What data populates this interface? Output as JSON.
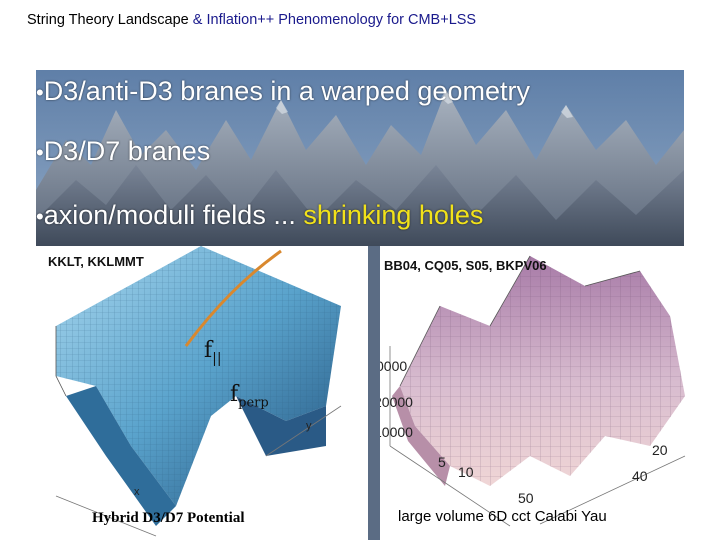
{
  "title": {
    "part1": "String Theory Landscape ",
    "part2": "& Inflation++ Phenomenology for CMB+LSS"
  },
  "bullets": [
    {
      "text": "D3/anti-D3 branes in a warped geometry"
    },
    {
      "text": "D3/D7 branes"
    },
    {
      "text": "axion/moduli fields ... ",
      "highlight": "shrinking holes"
    }
  ],
  "left_panel": {
    "label": "KKLT, KKLMMT",
    "f_parallel": "f",
    "f_parallel_sub": "||",
    "f_perp": "f",
    "f_perp_sub": "perp",
    "axis_x": "x",
    "axis_y": "y",
    "caption": "Hybrid D3/D7 Potential"
  },
  "right_panel": {
    "label": "BB04, CQ05, S05, BKPV06",
    "ticks": [
      "0000",
      "20000",
      "10000",
      "5",
      "10",
      "50",
      "20",
      "40"
    ],
    "caption": "large volume 6D cct Calabi Yau"
  },
  "colors": {
    "title_accent": "#1a1a8c",
    "highlight": "#f2e21a",
    "surface_left": "#6fb7d8",
    "surface_right": "#c9a9c9"
  }
}
